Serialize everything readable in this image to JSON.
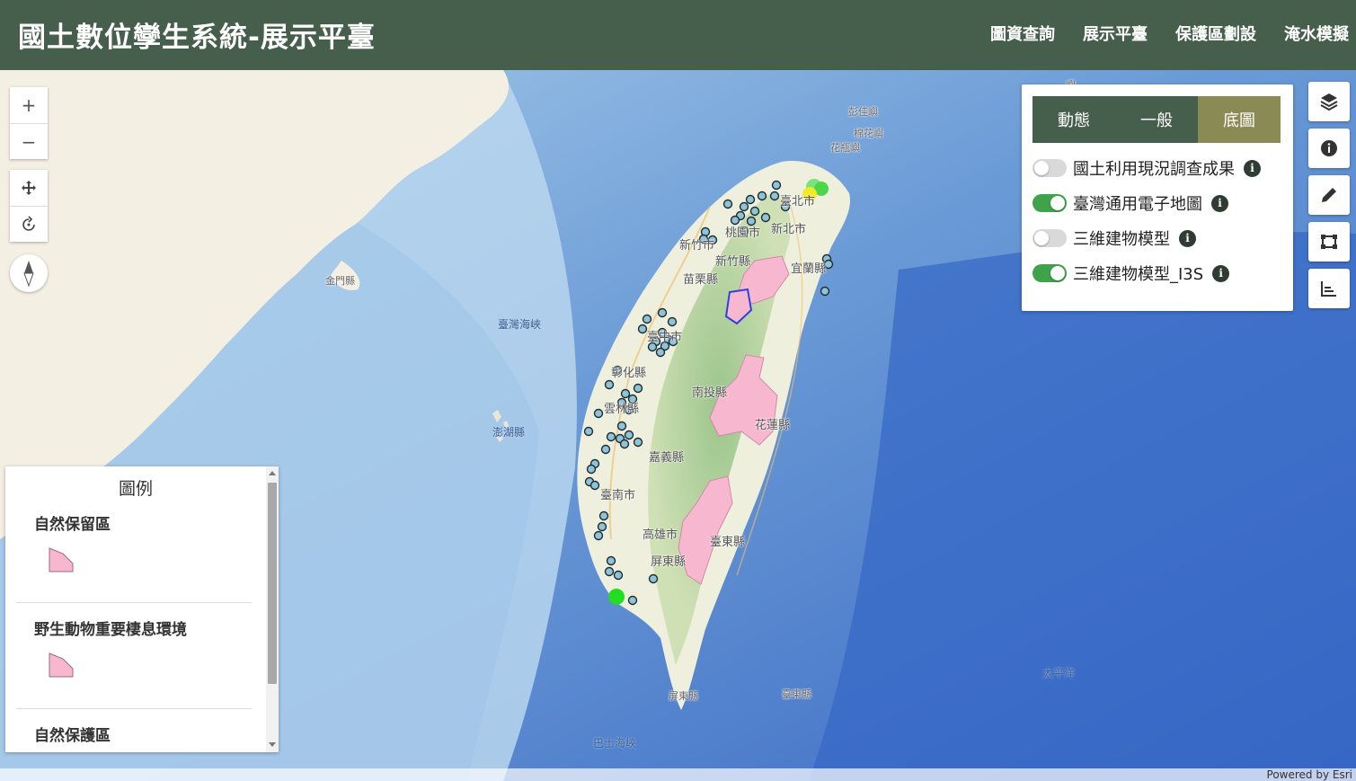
{
  "header": {
    "title": "國土數位孿生系統-展示平臺",
    "nav": [
      "圖資查詢",
      "展示平臺",
      "保護區劃設",
      "淹水模擬"
    ]
  },
  "map_controls": {
    "zoom_in": "+",
    "zoom_out": "−"
  },
  "layer_panel": {
    "tabs": [
      "動態",
      "一般",
      "底圖"
    ],
    "active_tab": "底圖",
    "layers": [
      {
        "name": "國土利用現況調查成果",
        "enabled": false
      },
      {
        "name": "臺灣通用電子地圖",
        "enabled": true
      },
      {
        "name": "三維建物模型",
        "enabled": false
      },
      {
        "name": "三維建物模型_I3S",
        "enabled": true
      }
    ],
    "info_glyph": "i"
  },
  "toolbar": [
    "layers-icon",
    "info-icon",
    "pencil-icon",
    "crop-icon",
    "bar-chart-icon"
  ],
  "legend": {
    "title": "圖例",
    "items": [
      "自然保留區",
      "野生動物重要棲息環境",
      "自然保護區"
    ]
  },
  "map_labels": {
    "cities": [
      "臺北市",
      "新北市",
      "桃園市",
      "新竹縣",
      "新竹市",
      "苗栗縣",
      "宜蘭縣",
      "臺中市",
      "彰化縣",
      "南投縣",
      "雲林縣",
      "嘉義縣",
      "花蓮縣",
      "臺南市",
      "高雄市",
      "臺東縣",
      "屏東縣",
      "屏東縣",
      "臺東縣"
    ],
    "seas": [
      "臺灣海峽",
      "澎湖縣",
      "金門縣",
      "巴士海峽",
      "太平洋"
    ],
    "islands": [
      "彭佳嶼",
      "棉花嶼",
      "花瓶嶼",
      "嶼"
    ]
  },
  "attribution": "Powered by Esri",
  "colors": {
    "header_bg": "#465e4c",
    "tab_active": "#8a8a55",
    "toggle_on": "#3ea34b",
    "protected_area_fill": "#f7b8cf",
    "point_fill": "#8fc3d6"
  }
}
